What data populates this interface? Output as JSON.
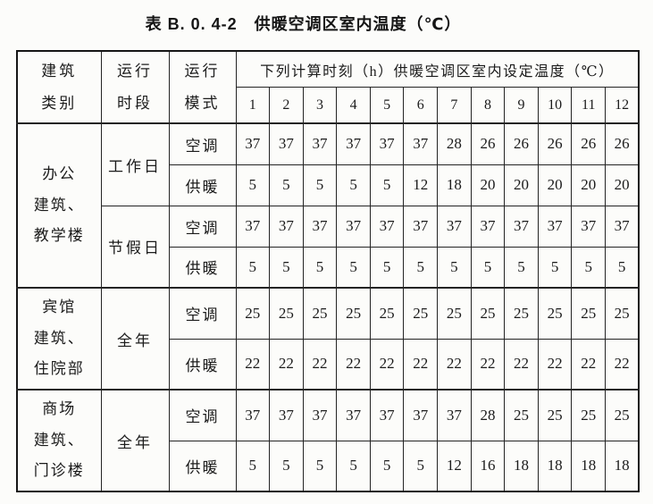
{
  "title": "表 B. 0. 4-2　供暖空调区室内温度（℃）",
  "colors": {
    "background": "#fcfcfa",
    "ink": "#1b1b1b",
    "border": "#242424"
  },
  "table": {
    "header": {
      "building_category": [
        "建筑",
        "类别"
      ],
      "operation_period": [
        "运行",
        "时段"
      ],
      "operation_mode": [
        "运行",
        "模式"
      ],
      "hours_title": "下列计算时刻（h）供暖空调区室内设定温度（℃）",
      "hour_labels": [
        "1",
        "2",
        "3",
        "4",
        "5",
        "6",
        "7",
        "8",
        "9",
        "10",
        "11",
        "12"
      ]
    },
    "groups": [
      {
        "building": [
          "办公",
          "建筑、",
          "教学楼"
        ],
        "periods": [
          {
            "period": "工作日",
            "rows": [
              {
                "mode": "空调",
                "values": [
                  37,
                  37,
                  37,
                  37,
                  37,
                  37,
                  28,
                  26,
                  26,
                  26,
                  26,
                  26
                ]
              },
              {
                "mode": "供暖",
                "values": [
                  5,
                  5,
                  5,
                  5,
                  5,
                  12,
                  18,
                  20,
                  20,
                  20,
                  20,
                  20
                ]
              }
            ]
          },
          {
            "period": "节假日",
            "rows": [
              {
                "mode": "空调",
                "values": [
                  37,
                  37,
                  37,
                  37,
                  37,
                  37,
                  37,
                  37,
                  37,
                  37,
                  37,
                  37
                ]
              },
              {
                "mode": "供暖",
                "values": [
                  5,
                  5,
                  5,
                  5,
                  5,
                  5,
                  5,
                  5,
                  5,
                  5,
                  5,
                  5
                ]
              }
            ]
          }
        ]
      },
      {
        "building": [
          "宾馆",
          "建筑、",
          "住院部"
        ],
        "periods": [
          {
            "period": "全年",
            "rows": [
              {
                "mode": "空调",
                "values": [
                  25,
                  25,
                  25,
                  25,
                  25,
                  25,
                  25,
                  25,
                  25,
                  25,
                  25,
                  25
                ]
              },
              {
                "mode": "供暖",
                "values": [
                  22,
                  22,
                  22,
                  22,
                  22,
                  22,
                  22,
                  22,
                  22,
                  22,
                  22,
                  22
                ]
              }
            ]
          }
        ]
      },
      {
        "building": [
          "商场",
          "建筑、",
          "门诊楼"
        ],
        "periods": [
          {
            "period": "全年",
            "rows": [
              {
                "mode": "空调",
                "values": [
                  37,
                  37,
                  37,
                  37,
                  37,
                  37,
                  37,
                  28,
                  25,
                  25,
                  25,
                  25
                ]
              },
              {
                "mode": "供暖",
                "values": [
                  5,
                  5,
                  5,
                  5,
                  5,
                  5,
                  12,
                  16,
                  18,
                  18,
                  18,
                  18
                ]
              }
            ]
          }
        ]
      }
    ]
  }
}
